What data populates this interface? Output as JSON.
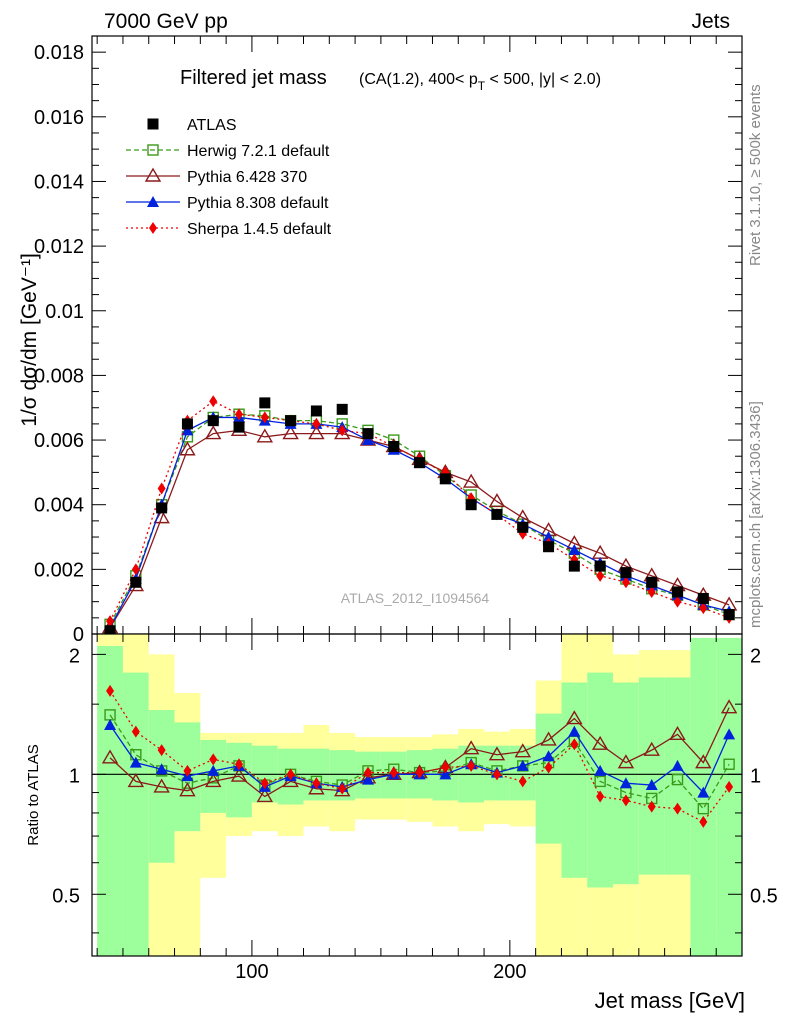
{
  "header": {
    "left": "7000 GeV pp",
    "right": "Jets"
  },
  "side_labels": {
    "rivet": "Rivet 3.1.10, ≥ 500k events",
    "mcplots": "mcplots.cern.ch [arXiv:1306.3436]"
  },
  "colors": {
    "atlas": "#000000",
    "herwig": "#3a9a1a",
    "pythia6": "#8b1a1a",
    "pythia8": "#0022dd",
    "sherpa": "#ee0000",
    "band_inner": "#9cff9c",
    "band_outer": "#ffff9c"
  },
  "chart_data": [
    {
      "type": "line",
      "title": "Filtered jet mass",
      "title_detail": "(CA(1.2), 400< p_T < 500, |y| < 2.0)",
      "title_detail_parts": [
        "(CA(1.2), 400< p",
        "T",
        " < 500, |y| < 2.0)"
      ],
      "ylabel": "1/σ dσ/dm [GeV⁻¹]",
      "xlabel": "",
      "watermark": "ATLAS_2012_I1094564",
      "xlim": [
        38,
        290
      ],
      "ylim": [
        0,
        0.0185
      ],
      "x": [
        45,
        55,
        65,
        75,
        85,
        95,
        105,
        115,
        125,
        135,
        145,
        155,
        165,
        175,
        185,
        195,
        205,
        215,
        225,
        235,
        245,
        255,
        265,
        275,
        285
      ],
      "yticks": [
        "0",
        "0.002",
        "0.004",
        "0.006",
        "0.008",
        "0.01",
        "0.012",
        "0.014",
        "0.016",
        "0.018"
      ],
      "ytick_values": [
        0,
        0.002,
        0.004,
        0.006,
        0.008,
        0.01,
        0.012,
        0.014,
        0.016,
        0.018
      ],
      "series": [
        {
          "name": "ATLAS",
          "marker": "filled-square",
          "values": [
            0.0001,
            0.0016,
            0.0039,
            0.0065,
            0.0066,
            0.0064,
            0.00715,
            0.0066,
            0.0069,
            0.00695,
            0.0062,
            0.0058,
            0.0053,
            0.0048,
            0.004,
            0.0037,
            0.0033,
            0.0027,
            0.0021,
            0.0021,
            0.0019,
            0.0016,
            0.0013,
            0.0011,
            0.0006
          ]
        },
        {
          "name": "Herwig 7.2.1 default",
          "marker": "open-square",
          "values": [
            0.0003,
            0.0018,
            0.004,
            0.0061,
            0.0067,
            0.0068,
            0.00675,
            0.0066,
            0.0066,
            0.0065,
            0.0063,
            0.006,
            0.0055,
            0.0049,
            0.0043,
            0.0038,
            0.0034,
            0.0029,
            0.0025,
            0.002,
            0.0017,
            0.0014,
            0.0012,
            0.0009,
            0.0006
          ]
        },
        {
          "name": "Pythia 6.428 370",
          "marker": "open-triangle",
          "values": [
            0.0002,
            0.0015,
            0.0036,
            0.0057,
            0.0062,
            0.0063,
            0.0061,
            0.0062,
            0.0062,
            0.0062,
            0.006,
            0.0058,
            0.0054,
            0.005,
            0.0047,
            0.0041,
            0.0036,
            0.0032,
            0.0028,
            0.0025,
            0.0021,
            0.0018,
            0.0015,
            0.0012,
            0.0009
          ]
        },
        {
          "name": "Pythia 8.308 default",
          "marker": "filled-triangle",
          "values": [
            0.0002,
            0.0017,
            0.004,
            0.0063,
            0.0067,
            0.0067,
            0.0066,
            0.0065,
            0.0065,
            0.0064,
            0.006,
            0.0057,
            0.0053,
            0.0048,
            0.0042,
            0.0037,
            0.0034,
            0.003,
            0.0026,
            0.0022,
            0.0018,
            0.0015,
            0.0012,
            0.0009,
            0.0007
          ]
        },
        {
          "name": "Sherpa 1.4.5 default",
          "marker": "filled-diamond",
          "values": [
            0.0004,
            0.002,
            0.0045,
            0.0066,
            0.0072,
            0.0068,
            0.0067,
            0.0066,
            0.0065,
            0.0063,
            0.0062,
            0.0058,
            0.0054,
            0.005,
            0.0042,
            0.0037,
            0.0031,
            0.0028,
            0.0023,
            0.0018,
            0.0016,
            0.0013,
            0.001,
            0.0008,
            0.0005
          ]
        }
      ]
    },
    {
      "type": "line",
      "title": "",
      "ylabel": "Ratio to ATLAS",
      "xlabel": "Jet mass [GeV]",
      "xlim": [
        38,
        290
      ],
      "ylim": [
        0.35,
        2.25
      ],
      "yscale": "log",
      "x": [
        45,
        55,
        65,
        75,
        85,
        95,
        105,
        115,
        125,
        135,
        145,
        155,
        165,
        175,
        185,
        195,
        205,
        215,
        225,
        235,
        245,
        255,
        265,
        275,
        285
      ],
      "bin_edges": [
        40,
        50,
        60,
        70,
        80,
        90,
        100,
        110,
        120,
        130,
        140,
        150,
        160,
        170,
        180,
        190,
        200,
        210,
        220,
        230,
        240,
        250,
        260,
        270,
        280,
        290
      ],
      "xticks": [
        "100",
        "200"
      ],
      "xtick_values": [
        100,
        200
      ],
      "yticks": [
        "0.5",
        "1",
        "2"
      ],
      "ytick_values": [
        0.5,
        1,
        2
      ],
      "bands": {
        "inner_low": [
          0.35,
          0.35,
          0.6,
          0.72,
          0.8,
          0.78,
          0.85,
          0.84,
          0.86,
          0.86,
          0.87,
          0.87,
          0.87,
          0.86,
          0.85,
          0.86,
          0.86,
          0.67,
          0.55,
          0.52,
          0.53,
          0.56,
          0.56,
          0.35,
          0.35
        ],
        "inner_high": [
          2.1,
          1.8,
          1.45,
          1.35,
          1.22,
          1.2,
          1.18,
          1.16,
          1.16,
          1.15,
          1.14,
          1.14,
          1.15,
          1.16,
          1.18,
          1.18,
          1.18,
          1.42,
          1.7,
          1.8,
          1.7,
          1.75,
          1.75,
          2.2,
          2.2
        ],
        "outer_low": [
          0.35,
          0.35,
          0.35,
          0.35,
          0.55,
          0.7,
          0.72,
          0.7,
          0.74,
          0.72,
          0.77,
          0.77,
          0.76,
          0.74,
          0.72,
          0.75,
          0.74,
          0.35,
          0.35,
          0.35,
          0.35,
          0.35,
          0.35,
          0.35,
          0.4
        ],
        "outer_high": [
          2.25,
          2.25,
          2.0,
          1.6,
          1.27,
          1.27,
          1.27,
          1.27,
          1.33,
          1.27,
          1.24,
          1.24,
          1.24,
          1.26,
          1.3,
          1.28,
          1.3,
          1.72,
          2.25,
          2.25,
          2.0,
          2.05,
          2.05,
          2.2,
          2.2
        ]
      },
      "series": [
        {
          "name": "ATLAS",
          "values": [
            1,
            1,
            1,
            1,
            1,
            1,
            1,
            1,
            1,
            1,
            1,
            1,
            1,
            1,
            1,
            1,
            1,
            1,
            1,
            1,
            1,
            1,
            1,
            1,
            1
          ]
        },
        {
          "name": "Herwig 7.2.1 default",
          "values": [
            1.41,
            1.12,
            1.02,
            0.95,
            0.98,
            1.05,
            0.94,
            1.0,
            0.96,
            0.94,
            1.02,
            1.03,
            1.01,
            1.02,
            1.07,
            1.02,
            1.05,
            1.07,
            1.21,
            0.96,
            0.9,
            0.87,
            0.97,
            0.82,
            1.06
          ]
        },
        {
          "name": "Pythia 6.428 370",
          "values": [
            1.1,
            0.96,
            0.93,
            0.91,
            0.96,
            0.99,
            0.88,
            0.96,
            0.92,
            0.91,
            0.98,
            1.0,
            1.01,
            1.04,
            1.16,
            1.12,
            1.14,
            1.22,
            1.38,
            1.19,
            1.07,
            1.15,
            1.26,
            1.07,
            1.47
          ]
        },
        {
          "name": "Pythia 8.308 default",
          "values": [
            1.33,
            1.07,
            1.03,
            0.99,
            1.02,
            1.05,
            0.93,
            0.99,
            0.95,
            0.93,
            0.97,
            1.0,
            1.0,
            1.0,
            1.06,
            1.01,
            1.05,
            1.11,
            1.28,
            1.02,
            0.95,
            0.94,
            1.05,
            0.9,
            1.26
          ]
        },
        {
          "name": "Sherpa 1.4.5 default",
          "values": [
            1.62,
            1.28,
            1.15,
            1.02,
            1.09,
            1.06,
            0.95,
            1.0,
            0.95,
            0.92,
            1.01,
            1.01,
            1.01,
            1.04,
            1.05,
            1.0,
            0.96,
            1.04,
            1.19,
            0.88,
            0.86,
            0.83,
            0.82,
            0.76,
            0.93
          ]
        }
      ]
    }
  ]
}
